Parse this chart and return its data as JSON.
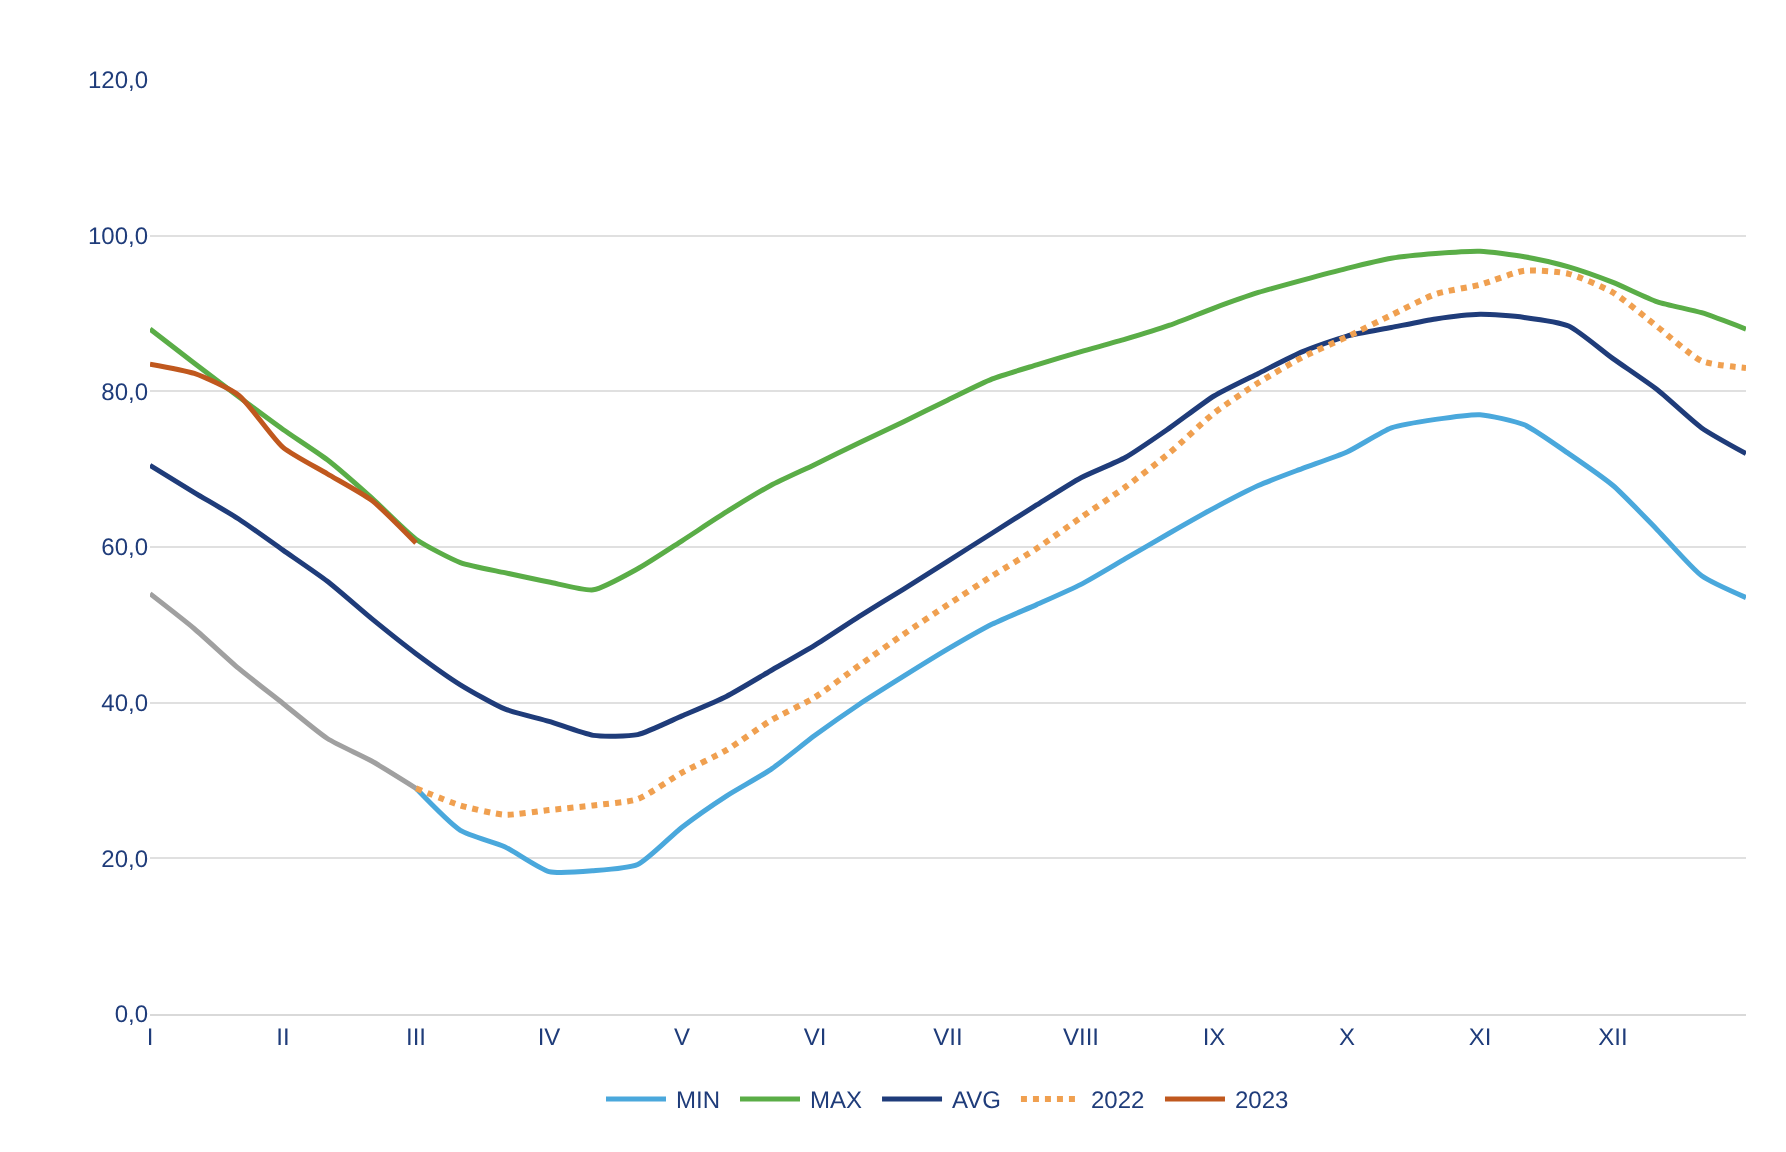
{
  "chart_data": {
    "type": "line",
    "ylim": [
      0,
      120
    ],
    "categories": [
      "I",
      null,
      null,
      "II",
      null,
      null,
      "III",
      null,
      null,
      "IV",
      null,
      null,
      "V",
      null,
      null,
      "VI",
      null,
      null,
      "VII",
      null,
      null,
      "VIII",
      null,
      null,
      "IX",
      null,
      null,
      "X",
      null,
      null,
      "XI",
      null,
      null,
      "XII",
      null,
      null,
      null
    ],
    "yticks": [
      {
        "value": 0,
        "label": "0,0"
      },
      {
        "value": 20,
        "label": "20,0"
      },
      {
        "value": 40,
        "label": "40,0"
      },
      {
        "value": 60,
        "label": "60,0"
      },
      {
        "value": 80,
        "label": "80,0"
      },
      {
        "value": 100,
        "label": "100,0"
      },
      {
        "value": 120,
        "label": "120,0"
      }
    ],
    "grid": "y",
    "legend": "bottom",
    "series": [
      {
        "color": "#a0a0a0",
        "values": [
          54,
          49.5,
          44.4,
          39.9,
          35.4,
          32.5,
          29,
          null,
          null,
          null,
          null,
          null,
          null,
          null,
          null,
          null,
          null,
          null,
          null,
          null,
          null,
          null,
          null,
          null,
          null,
          null,
          null,
          null,
          null,
          null,
          null,
          null,
          null,
          null,
          null,
          null,
          null
        ]
      },
      {
        "name": "MIN",
        "color": "#4aa8dc",
        "values": [
          null,
          null,
          null,
          null,
          null,
          null,
          29,
          23.6,
          21.5,
          18.3,
          18.4,
          19.2,
          24,
          28,
          31.4,
          35.8,
          39.8,
          43.4,
          46.9,
          50.1,
          52.6,
          55.2,
          58.5,
          61.8,
          65,
          67.9,
          70.1,
          72.2,
          75.3,
          76.4,
          77,
          75.7,
          72,
          67.9,
          62.2,
          56.3,
          53.5
        ]
      },
      {
        "name": "MAX",
        "color": "#5aad47",
        "values": [
          88,
          83.6,
          79.3,
          75.1,
          71.2,
          66.3,
          61,
          58,
          56.7,
          55.5,
          54.5,
          57.2,
          60.8,
          64.5,
          67.9,
          70.6,
          73.4,
          76.1,
          78.9,
          81.6,
          83.4,
          85.1,
          86.7,
          88.5,
          90.7,
          92.7,
          94.3,
          95.8,
          97.1,
          97.7,
          98,
          97.3,
          96,
          94,
          91.5,
          90.1,
          88
        ]
      },
      {
        "name": "AVG",
        "color": "#1f3c7a",
        "values": [
          70.5,
          67,
          63.6,
          59.6,
          55.6,
          50.8,
          46.3,
          42.3,
          39.2,
          37.6,
          35.8,
          35.9,
          38.3,
          40.8,
          44.1,
          47.4,
          51.1,
          54.6,
          58.2,
          61.8,
          65.4,
          68.9,
          71.5,
          75.3,
          79.4,
          82.3,
          85.1,
          87.1,
          88.2,
          89.3,
          89.9,
          89.5,
          88.4,
          84.2,
          80.2,
          75.3,
          72
        ]
      },
      {
        "name": "2022",
        "color": "#f0a050",
        "line_style": "dotted",
        "values": [
          null,
          null,
          null,
          null,
          null,
          null,
          29,
          26.8,
          25.6,
          26.2,
          26.8,
          27.6,
          31,
          33.9,
          37.7,
          40.7,
          44.8,
          48.8,
          52.6,
          56.3,
          59.8,
          63.8,
          67.7,
          72.1,
          77.2,
          81.1,
          84.4,
          87,
          89.8,
          92.5,
          93.7,
          95.5,
          95.1,
          92.7,
          88.3,
          83.9,
          83
        ]
      },
      {
        "name": "2023",
        "color": "#c0581e",
        "values": [
          83.5,
          82.3,
          79.5,
          72.8,
          69.4,
          66,
          60.5,
          null,
          null,
          null,
          null,
          null,
          null,
          null,
          null,
          null,
          null,
          null,
          null,
          null,
          null,
          null,
          null,
          null,
          null,
          null,
          null,
          null,
          null,
          null,
          null,
          null,
          null,
          null,
          null,
          null,
          null
        ]
      }
    ]
  }
}
